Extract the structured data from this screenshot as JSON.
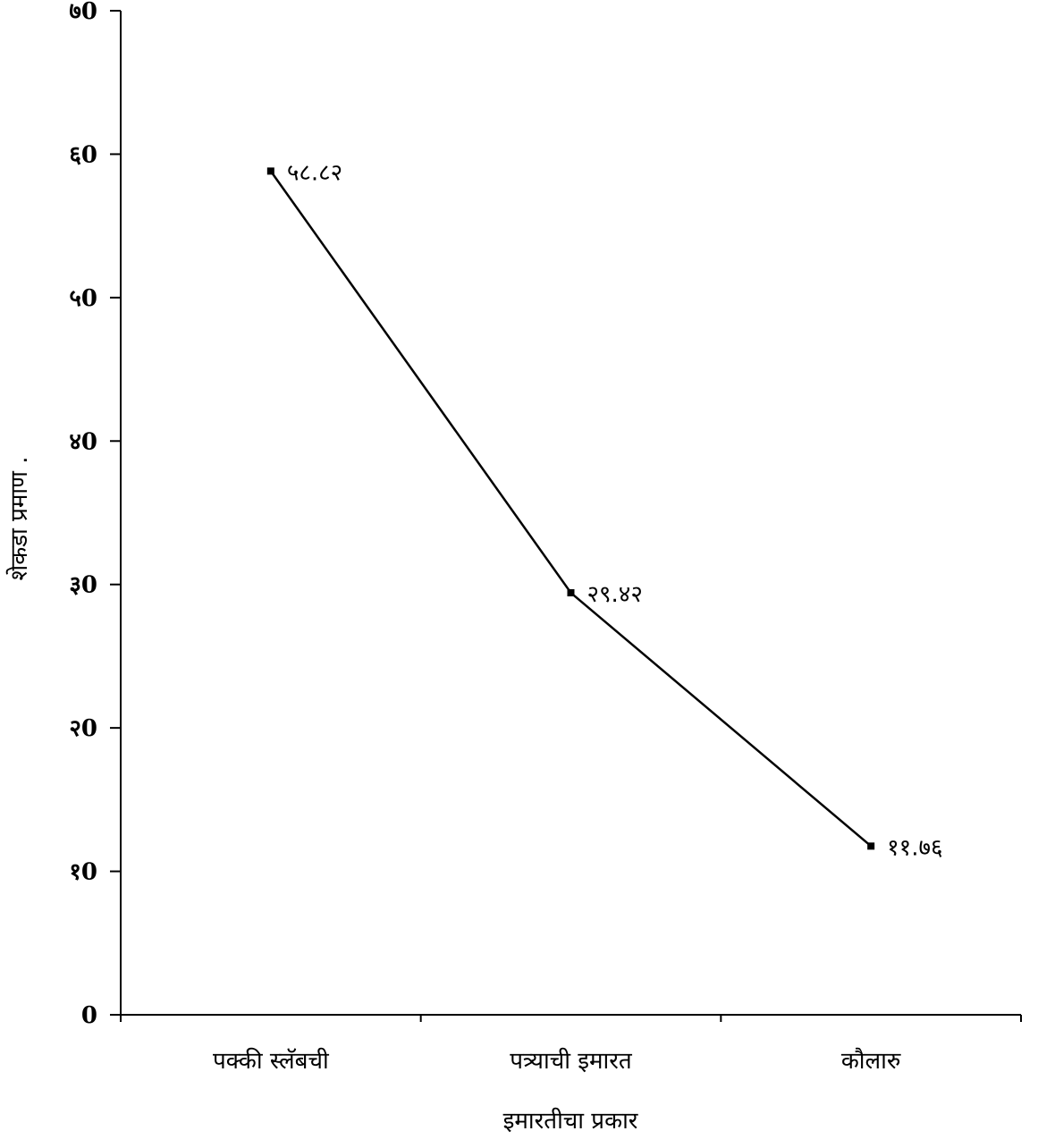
{
  "chart_data": {
    "type": "line",
    "title": "",
    "xlabel": "इमारतीचा प्रकार",
    "ylabel": "शेकडा प्रमाण .",
    "ylim": [
      0,
      70
    ],
    "yticks": [
      0,
      10,
      20,
      30,
      40,
      50,
      60,
      70
    ],
    "ytick_labels": [
      "0",
      "१0",
      "२0",
      "३0",
      "४0",
      "५0",
      "६0",
      "७0"
    ],
    "categories": [
      "पक्की स्लॅबची",
      "पत्र्याची इमारत",
      "कौलारु"
    ],
    "series": [
      {
        "values": [
          58.82,
          29.42,
          11.76
        ],
        "data_labels": [
          "५८.८२",
          "२९.४२",
          "११.७६"
        ]
      }
    ],
    "grid": false,
    "legend": "none",
    "colors": {
      "line": "#000000",
      "axis": "#000000",
      "background": "#ffffff"
    }
  }
}
